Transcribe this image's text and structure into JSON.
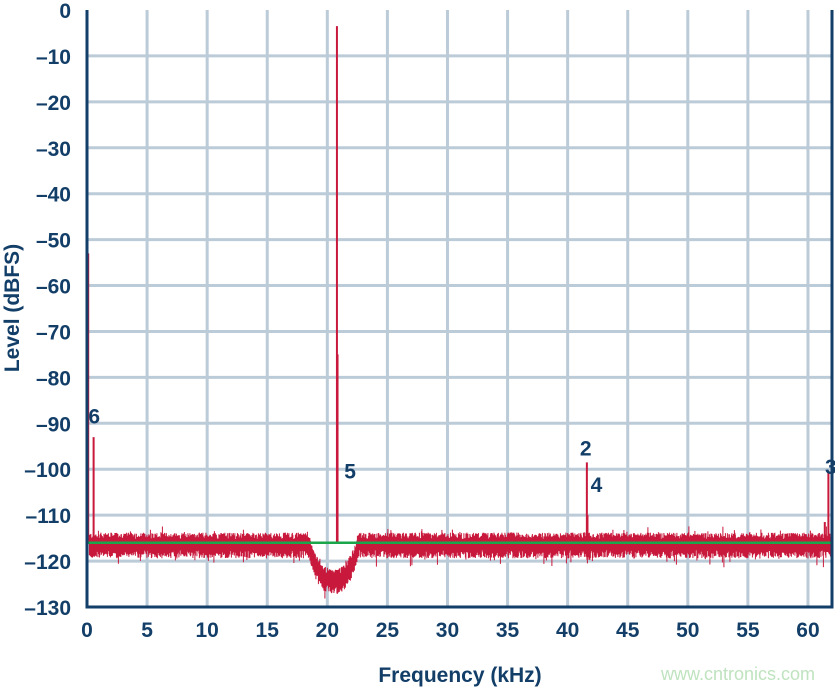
{
  "chart_data": {
    "type": "line",
    "title": "",
    "xlabel": "Frequency (kHz)",
    "ylabel": "Level (dBFS)",
    "xlim": [
      0,
      62
    ],
    "ylim": [
      -130,
      0
    ],
    "xticks": [
      0,
      5,
      10,
      15,
      20,
      25,
      30,
      35,
      40,
      45,
      50,
      55,
      60
    ],
    "yticks": [
      0,
      -10,
      -20,
      -30,
      -40,
      -50,
      -60,
      -70,
      -80,
      -90,
      -100,
      -110,
      -120,
      -130
    ],
    "ytick_labels": [
      "0",
      "–10",
      "–20",
      "–30",
      "–40",
      "–50",
      "–60",
      "–70",
      "–80",
      "–90",
      "–100",
      "–110",
      "–120",
      "–130"
    ],
    "grid": true,
    "noise_floor_dbfs": -116,
    "noise_floor_color": "#1aa64a",
    "spectrum_color": "#c8193c",
    "grid_color": "#bccbd8",
    "axis_color": "#123e68",
    "noise_hump": {
      "from_khz": 18.5,
      "to_khz": 22.5,
      "peak_dbfs": -107
    },
    "peaks": [
      {
        "x": 0.1,
        "y": -53
      },
      {
        "x": 0.55,
        "y": -93
      },
      {
        "x": 20.8,
        "y": -3.5
      },
      {
        "x": 20.85,
        "y": -75
      },
      {
        "x": 41.6,
        "y": -98.5
      },
      {
        "x": 41.65,
        "y": -110
      },
      {
        "x": 61.7,
        "y": -100.5
      },
      {
        "x": 61.4,
        "y": -111.5
      }
    ],
    "annotations": [
      {
        "text": "6",
        "x": 0.6,
        "y": -90
      },
      {
        "text": "5",
        "x": 21.9,
        "y": -102
      },
      {
        "text": "2",
        "x": 41.5,
        "y": -97
      },
      {
        "text": "4",
        "x": 42.4,
        "y": -105
      },
      {
        "text": "3",
        "x": 61.9,
        "y": -101
      }
    ]
  },
  "watermark": "www.cntronics.com"
}
